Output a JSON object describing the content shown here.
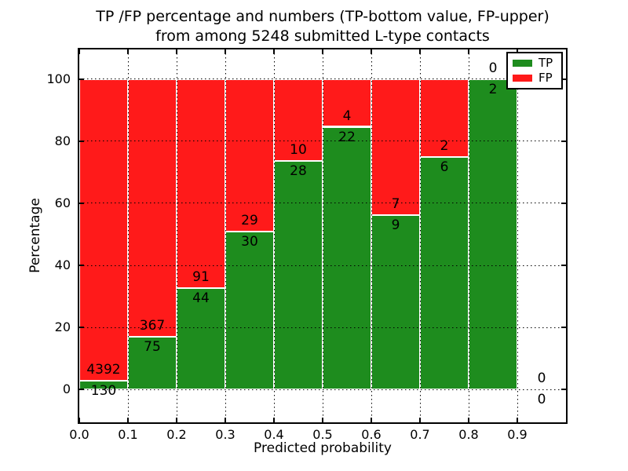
{
  "title": {
    "line1": "TP /FP percentage and numbers (TP-bottom value, FP-upper)",
    "line2": "from among 5248 submitted L-type contacts"
  },
  "axes": {
    "xlabel": "Predicted probability",
    "ylabel": "Percentage"
  },
  "legend": {
    "items": [
      {
        "label": "TP",
        "color": "#1E8C1E"
      },
      {
        "label": "FP",
        "color": "#FF1A1A"
      }
    ]
  },
  "chart_data": {
    "type": "bar",
    "variant": "stacked-percentage-histogram",
    "title": "TP /FP percentage and numbers (TP-bottom value, FP-upper) from among 5248 submitted L-type contacts",
    "xlabel": "Predicted probability",
    "ylabel": "Percentage",
    "total_contacts": 5248,
    "bin_edges": [
      0.0,
      0.1,
      0.2,
      0.3,
      0.4,
      0.5,
      0.6,
      0.7,
      0.8,
      0.9,
      1.0
    ],
    "series": [
      {
        "name": "TP",
        "color": "#1E8C1E",
        "counts": [
          130,
          75,
          44,
          30,
          28,
          22,
          9,
          6,
          2,
          0
        ]
      },
      {
        "name": "FP",
        "color": "#FF1A1A",
        "counts": [
          4392,
          367,
          91,
          29,
          10,
          4,
          7,
          2,
          0,
          0
        ]
      }
    ],
    "tp_percent_of_bin": [
      2.87,
      16.97,
      32.59,
      50.85,
      73.68,
      84.62,
      56.25,
      75.0,
      100.0,
      0.0
    ],
    "annotation_rule": "FP count above TP/FP boundary, TP count below",
    "xticks": [
      "0.0",
      "0.1",
      "0.2",
      "0.3",
      "0.4",
      "0.5",
      "0.6",
      "0.7",
      "0.8",
      "0.9"
    ],
    "yticks": [
      0,
      20,
      40,
      60,
      80,
      100
    ],
    "xlim": [
      0.0,
      1.0
    ],
    "ylim": [
      -10.5,
      109.5
    ],
    "grid": "dotted",
    "legend_position": "upper-right",
    "bar_edge_color": "#FFFFFF"
  },
  "colors": {
    "tp_green": "#1E8C1E",
    "fp_red": "#FF1A1A",
    "background": "#FFFFFF",
    "text": "#000000",
    "grid": "#000000"
  }
}
